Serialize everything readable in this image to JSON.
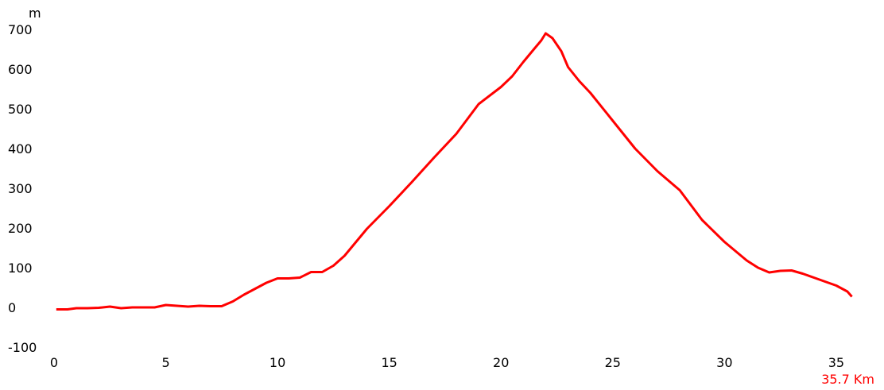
{
  "chart_data": {
    "type": "line",
    "ylabel": "m",
    "xlabel": "35.7 Km",
    "xlim": [
      0,
      36
    ],
    "ylim": [
      -100,
      700
    ],
    "xticks": [
      0,
      5,
      10,
      15,
      20,
      25,
      30,
      35
    ],
    "yticks": [
      700,
      600,
      500,
      400,
      300,
      200,
      100,
      0,
      -100
    ],
    "grid": false,
    "colors": {
      "line": "#ff0000",
      "distance_label": "#ff0000",
      "axis_text": "#000000"
    },
    "series": [
      {
        "x": [
          0.1,
          0.6,
          1.0,
          1.5,
          2.0,
          2.5,
          3.0,
          3.5,
          4.0,
          4.5,
          5.0,
          5.5,
          6.0,
          6.5,
          7.0,
          7.5,
          8.0,
          8.5,
          9.0,
          9.5,
          10.0,
          10.5,
          11.0,
          11.5,
          12.0,
          12.5,
          13.0,
          14.0,
          15.0,
          16.0,
          17.0,
          18.0,
          19.0,
          20.0,
          20.5,
          21.0,
          21.5,
          21.8,
          22.0,
          22.3,
          22.7,
          23.0,
          23.5,
          24.0,
          25.0,
          26.0,
          27.0,
          28.0,
          29.0,
          30.0,
          31.0,
          31.5,
          32.0,
          32.5,
          33.0,
          33.5,
          34.0,
          34.5,
          35.0,
          35.5,
          35.7
        ],
        "y": [
          -5,
          -5,
          -2,
          -2,
          -1,
          2,
          -2,
          0,
          0,
          0,
          6,
          4,
          2,
          4,
          3,
          3,
          15,
          32,
          47,
          62,
          73,
          73,
          75,
          89,
          89,
          105,
          130,
          198,
          255,
          315,
          377,
          437,
          512,
          555,
          582,
          618,
          652,
          672,
          690,
          678,
          645,
          605,
          570,
          540,
          470,
          400,
          343,
          295,
          220,
          165,
          118,
          100,
          88,
          92,
          93,
          85,
          75,
          65,
          55,
          40,
          27
        ]
      }
    ]
  }
}
